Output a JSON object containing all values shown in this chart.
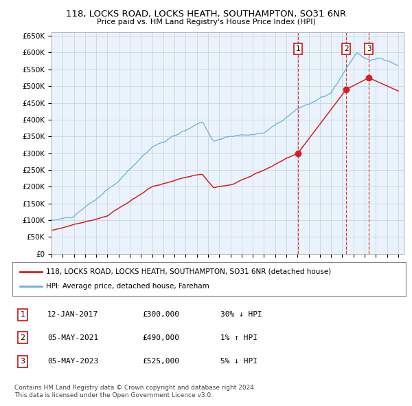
{
  "title": "118, LOCKS ROAD, LOCKS HEATH, SOUTHAMPTON, SO31 6NR",
  "subtitle": "Price paid vs. HM Land Registry's House Price Index (HPI)",
  "ylim": [
    0,
    660000
  ],
  "yticks": [
    0,
    50000,
    100000,
    150000,
    200000,
    250000,
    300000,
    350000,
    400000,
    450000,
    500000,
    550000,
    600000,
    650000
  ],
  "ytick_labels": [
    "£0",
    "£50K",
    "£100K",
    "£150K",
    "£200K",
    "£250K",
    "£300K",
    "£350K",
    "£400K",
    "£450K",
    "£500K",
    "£550K",
    "£600K",
    "£650K"
  ],
  "hpi_color": "#6baed6",
  "price_color": "#d42020",
  "chart_bg": "#eaf3fb",
  "transaction_dates": [
    2017.04,
    2021.35,
    2023.37
  ],
  "transaction_prices": [
    300000,
    490000,
    525000
  ],
  "transaction_labels": [
    "1",
    "2",
    "3"
  ],
  "legend_line1": "118, LOCKS ROAD, LOCKS HEATH, SOUTHAMPTON, SO31 6NR (detached house)",
  "legend_line2": "HPI: Average price, detached house, Fareham",
  "table_data": [
    [
      "1",
      "12-JAN-2017",
      "£300,000",
      "30% ↓ HPI"
    ],
    [
      "2",
      "05-MAY-2021",
      "£490,000",
      "1% ↑ HPI"
    ],
    [
      "3",
      "05-MAY-2023",
      "£525,000",
      "5% ↓ HPI"
    ]
  ],
  "footnote1": "Contains HM Land Registry data © Crown copyright and database right 2024.",
  "footnote2": "This data is licensed under the Open Government Licence v3.0.",
  "background_color": "#ffffff",
  "grid_color": "#c0d0e0"
}
